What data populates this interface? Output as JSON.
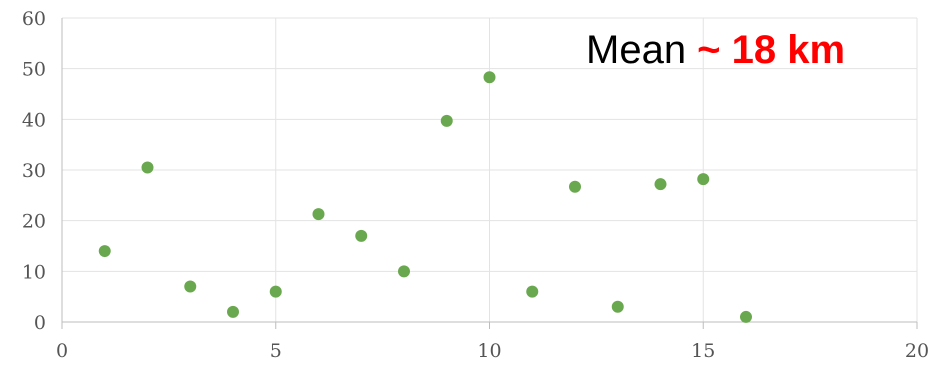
{
  "chart_data": {
    "type": "scatter",
    "title": "",
    "xlabel": "",
    "ylabel": "",
    "xlim": [
      0,
      20
    ],
    "ylim": [
      0,
      60
    ],
    "x_ticks": [
      0,
      5,
      10,
      15,
      20
    ],
    "y_ticks": [
      0,
      10,
      20,
      30,
      40,
      50,
      60
    ],
    "grid": true,
    "legend": "none",
    "series": [
      {
        "color": "#6aa84f",
        "points": [
          {
            "x": 1,
            "y": 14
          },
          {
            "x": 2,
            "y": 30.5
          },
          {
            "x": 3,
            "y": 7
          },
          {
            "x": 4,
            "y": 2
          },
          {
            "x": 5,
            "y": 6
          },
          {
            "x": 6,
            "y": 21.3
          },
          {
            "x": 7,
            "y": 17
          },
          {
            "x": 8,
            "y": 10
          },
          {
            "x": 9,
            "y": 39.7
          },
          {
            "x": 10,
            "y": 48.3
          },
          {
            "x": 11,
            "y": 6
          },
          {
            "x": 12,
            "y": 26.7
          },
          {
            "x": 13,
            "y": 3
          },
          {
            "x": 14,
            "y": 27.2
          },
          {
            "x": 15,
            "y": 28.2
          },
          {
            "x": 16,
            "y": 1
          }
        ]
      }
    ],
    "annotation": {
      "prefix": "Mean ",
      "highlight": "~ 18 km",
      "prefix_color": "#000000",
      "highlight_color": "#ff0000"
    }
  }
}
